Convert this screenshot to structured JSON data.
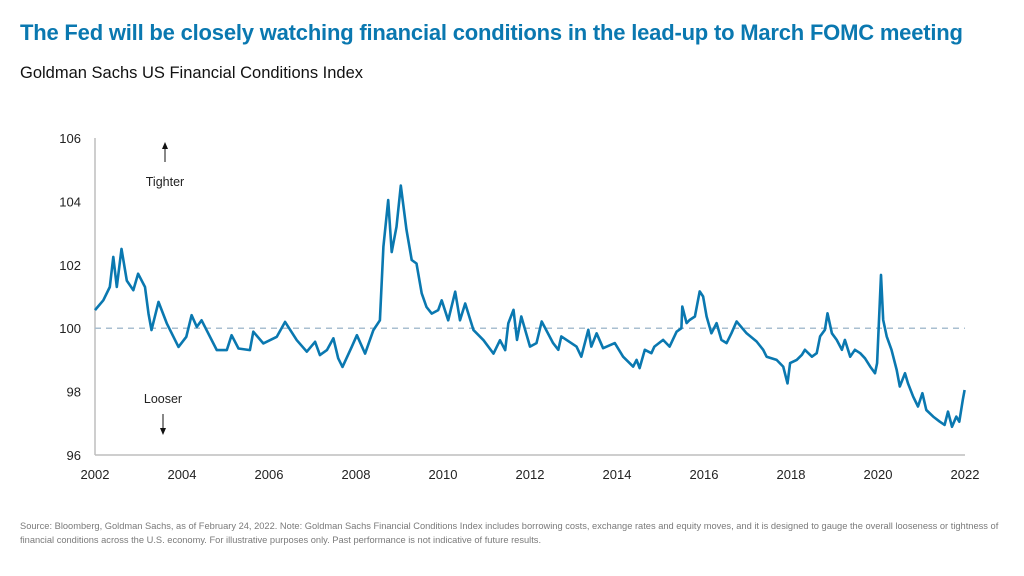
{
  "title": "The Fed will be closely watching financial conditions in the lead-up to March FOMC meeting",
  "subtitle": "Goldman Sachs US Financial Conditions Index",
  "footnote": "Source: Bloomberg, Goldman Sachs, as of February 24, 2022. Note: Goldman Sachs Financial Conditions Index includes borrowing costs, exchange rates and equity moves, and it is designed to gauge the overall looseness or tightness of financial conditions across the U.S. economy. For illustrative purposes only. Past performance is not indicative of future results.",
  "chart_data": {
    "type": "line",
    "title": "Goldman Sachs US Financial Conditions Index",
    "xlabel": "",
    "ylabel": "",
    "xlim": [
      2002,
      2022
    ],
    "ylim": [
      96,
      106
    ],
    "xticks": [
      "2002",
      "2004",
      "2006",
      "2008",
      "2010",
      "2012",
      "2014",
      "2016",
      "2018",
      "2020",
      "2022"
    ],
    "yticks": [
      "96",
      "98",
      "100",
      "102",
      "104",
      "106"
    ],
    "grid": false,
    "reference_line": {
      "value": 100,
      "style": "dashed",
      "color": "#a9bfd0"
    },
    "annotations": {
      "up": "Tighter",
      "down": "Looser"
    },
    "line_color": "#0a78b0",
    "series": [
      {
        "points": [
          [
            2002.0,
            100.57
          ],
          [
            2002.19,
            100.88
          ],
          [
            2002.34,
            101.3
          ],
          [
            2002.42,
            102.25
          ],
          [
            2002.5,
            101.3
          ],
          [
            2002.61,
            102.5
          ],
          [
            2002.73,
            101.5
          ],
          [
            2002.88,
            101.2
          ],
          [
            2002.99,
            101.72
          ],
          [
            2003.15,
            101.3
          ],
          [
            2003.23,
            100.46
          ],
          [
            2003.3,
            99.94
          ],
          [
            2003.46,
            100.83
          ],
          [
            2003.65,
            100.15
          ],
          [
            2003.92,
            99.41
          ],
          [
            2004.1,
            99.73
          ],
          [
            2004.22,
            100.41
          ],
          [
            2004.34,
            100.04
          ],
          [
            2004.45,
            100.25
          ],
          [
            2004.8,
            99.31
          ],
          [
            2005.03,
            99.31
          ],
          [
            2005.14,
            99.78
          ],
          [
            2005.3,
            99.36
          ],
          [
            2005.56,
            99.31
          ],
          [
            2005.64,
            99.89
          ],
          [
            2005.87,
            99.52
          ],
          [
            2006.18,
            99.73
          ],
          [
            2006.37,
            100.2
          ],
          [
            2006.64,
            99.62
          ],
          [
            2006.87,
            99.26
          ],
          [
            2007.06,
            99.57
          ],
          [
            2007.17,
            99.15
          ],
          [
            2007.33,
            99.31
          ],
          [
            2007.48,
            99.68
          ],
          [
            2007.59,
            99.05
          ],
          [
            2007.69,
            98.78
          ],
          [
            2007.9,
            99.41
          ],
          [
            2008.02,
            99.78
          ],
          [
            2008.21,
            99.2
          ],
          [
            2008.4,
            99.94
          ],
          [
            2008.55,
            100.25
          ],
          [
            2008.63,
            102.57
          ],
          [
            2008.74,
            104.04
          ],
          [
            2008.82,
            102.4
          ],
          [
            2008.93,
            103.2
          ],
          [
            2009.03,
            104.5
          ],
          [
            2009.16,
            103.1
          ],
          [
            2009.28,
            102.15
          ],
          [
            2009.39,
            102.04
          ],
          [
            2009.51,
            101.1
          ],
          [
            2009.62,
            100.67
          ],
          [
            2009.74,
            100.46
          ],
          [
            2009.89,
            100.57
          ],
          [
            2009.97,
            100.88
          ],
          [
            2010.12,
            100.25
          ],
          [
            2010.28,
            101.15
          ],
          [
            2010.39,
            100.25
          ],
          [
            2010.51,
            100.78
          ],
          [
            2010.7,
            99.94
          ],
          [
            2010.93,
            99.62
          ],
          [
            2011.16,
            99.2
          ],
          [
            2011.31,
            99.62
          ],
          [
            2011.43,
            99.31
          ],
          [
            2011.5,
            100.15
          ],
          [
            2011.62,
            100.58
          ],
          [
            2011.7,
            99.63
          ],
          [
            2011.8,
            100.37
          ],
          [
            2012.0,
            99.42
          ],
          [
            2012.15,
            99.53
          ],
          [
            2012.27,
            100.21
          ],
          [
            2012.53,
            99.53
          ],
          [
            2012.65,
            99.32
          ],
          [
            2012.72,
            99.74
          ],
          [
            2013.07,
            99.42
          ],
          [
            2013.18,
            99.1
          ],
          [
            2013.34,
            99.95
          ],
          [
            2013.41,
            99.42
          ],
          [
            2013.53,
            99.84
          ],
          [
            2013.68,
            99.37
          ],
          [
            2013.95,
            99.53
          ],
          [
            2014.14,
            99.1
          ],
          [
            2014.37,
            98.79
          ],
          [
            2014.45,
            99.0
          ],
          [
            2014.52,
            98.74
          ],
          [
            2014.64,
            99.32
          ],
          [
            2014.79,
            99.21
          ],
          [
            2014.86,
            99.42
          ],
          [
            2015.06,
            99.63
          ],
          [
            2015.21,
            99.42
          ],
          [
            2015.37,
            99.89
          ],
          [
            2015.48,
            100.0
          ],
          [
            2015.5,
            100.68
          ],
          [
            2015.6,
            100.16
          ],
          [
            2015.67,
            100.26
          ],
          [
            2015.79,
            100.37
          ],
          [
            2015.9,
            101.16
          ],
          [
            2015.98,
            101.0
          ],
          [
            2016.06,
            100.37
          ],
          [
            2016.17,
            99.84
          ],
          [
            2016.29,
            100.16
          ],
          [
            2016.4,
            99.63
          ],
          [
            2016.52,
            99.53
          ],
          [
            2016.63,
            99.84
          ],
          [
            2016.75,
            100.21
          ],
          [
            2016.98,
            99.84
          ],
          [
            2017.21,
            99.58
          ],
          [
            2017.36,
            99.32
          ],
          [
            2017.44,
            99.1
          ],
          [
            2017.67,
            99.0
          ],
          [
            2017.82,
            98.79
          ],
          [
            2017.92,
            98.26
          ],
          [
            2017.98,
            98.9
          ],
          [
            2018.13,
            99.0
          ],
          [
            2018.25,
            99.16
          ],
          [
            2018.32,
            99.32
          ],
          [
            2018.48,
            99.1
          ],
          [
            2018.59,
            99.21
          ],
          [
            2018.67,
            99.74
          ],
          [
            2018.78,
            99.95
          ],
          [
            2018.84,
            100.47
          ],
          [
            2018.94,
            99.84
          ],
          [
            2019.05,
            99.63
          ],
          [
            2019.17,
            99.32
          ],
          [
            2019.24,
            99.63
          ],
          [
            2019.36,
            99.1
          ],
          [
            2019.47,
            99.32
          ],
          [
            2019.59,
            99.21
          ],
          [
            2019.7,
            99.05
          ],
          [
            2019.82,
            98.79
          ],
          [
            2019.93,
            98.58
          ],
          [
            2019.98,
            98.9
          ],
          [
            2020.07,
            101.68
          ],
          [
            2020.12,
            100.26
          ],
          [
            2020.2,
            99.74
          ],
          [
            2020.31,
            99.32
          ],
          [
            2020.43,
            98.68
          ],
          [
            2020.5,
            98.16
          ],
          [
            2020.62,
            98.58
          ],
          [
            2020.69,
            98.26
          ],
          [
            2020.81,
            97.84
          ],
          [
            2020.92,
            97.53
          ],
          [
            2021.02,
            97.95
          ],
          [
            2021.11,
            97.42
          ],
          [
            2021.27,
            97.21
          ],
          [
            2021.42,
            97.05
          ],
          [
            2021.53,
            96.95
          ],
          [
            2021.61,
            97.37
          ],
          [
            2021.7,
            96.89
          ],
          [
            2021.8,
            97.21
          ],
          [
            2021.87,
            97.05
          ],
          [
            2021.95,
            97.74
          ],
          [
            2021.99,
            98.05
          ]
        ]
      }
    ]
  }
}
